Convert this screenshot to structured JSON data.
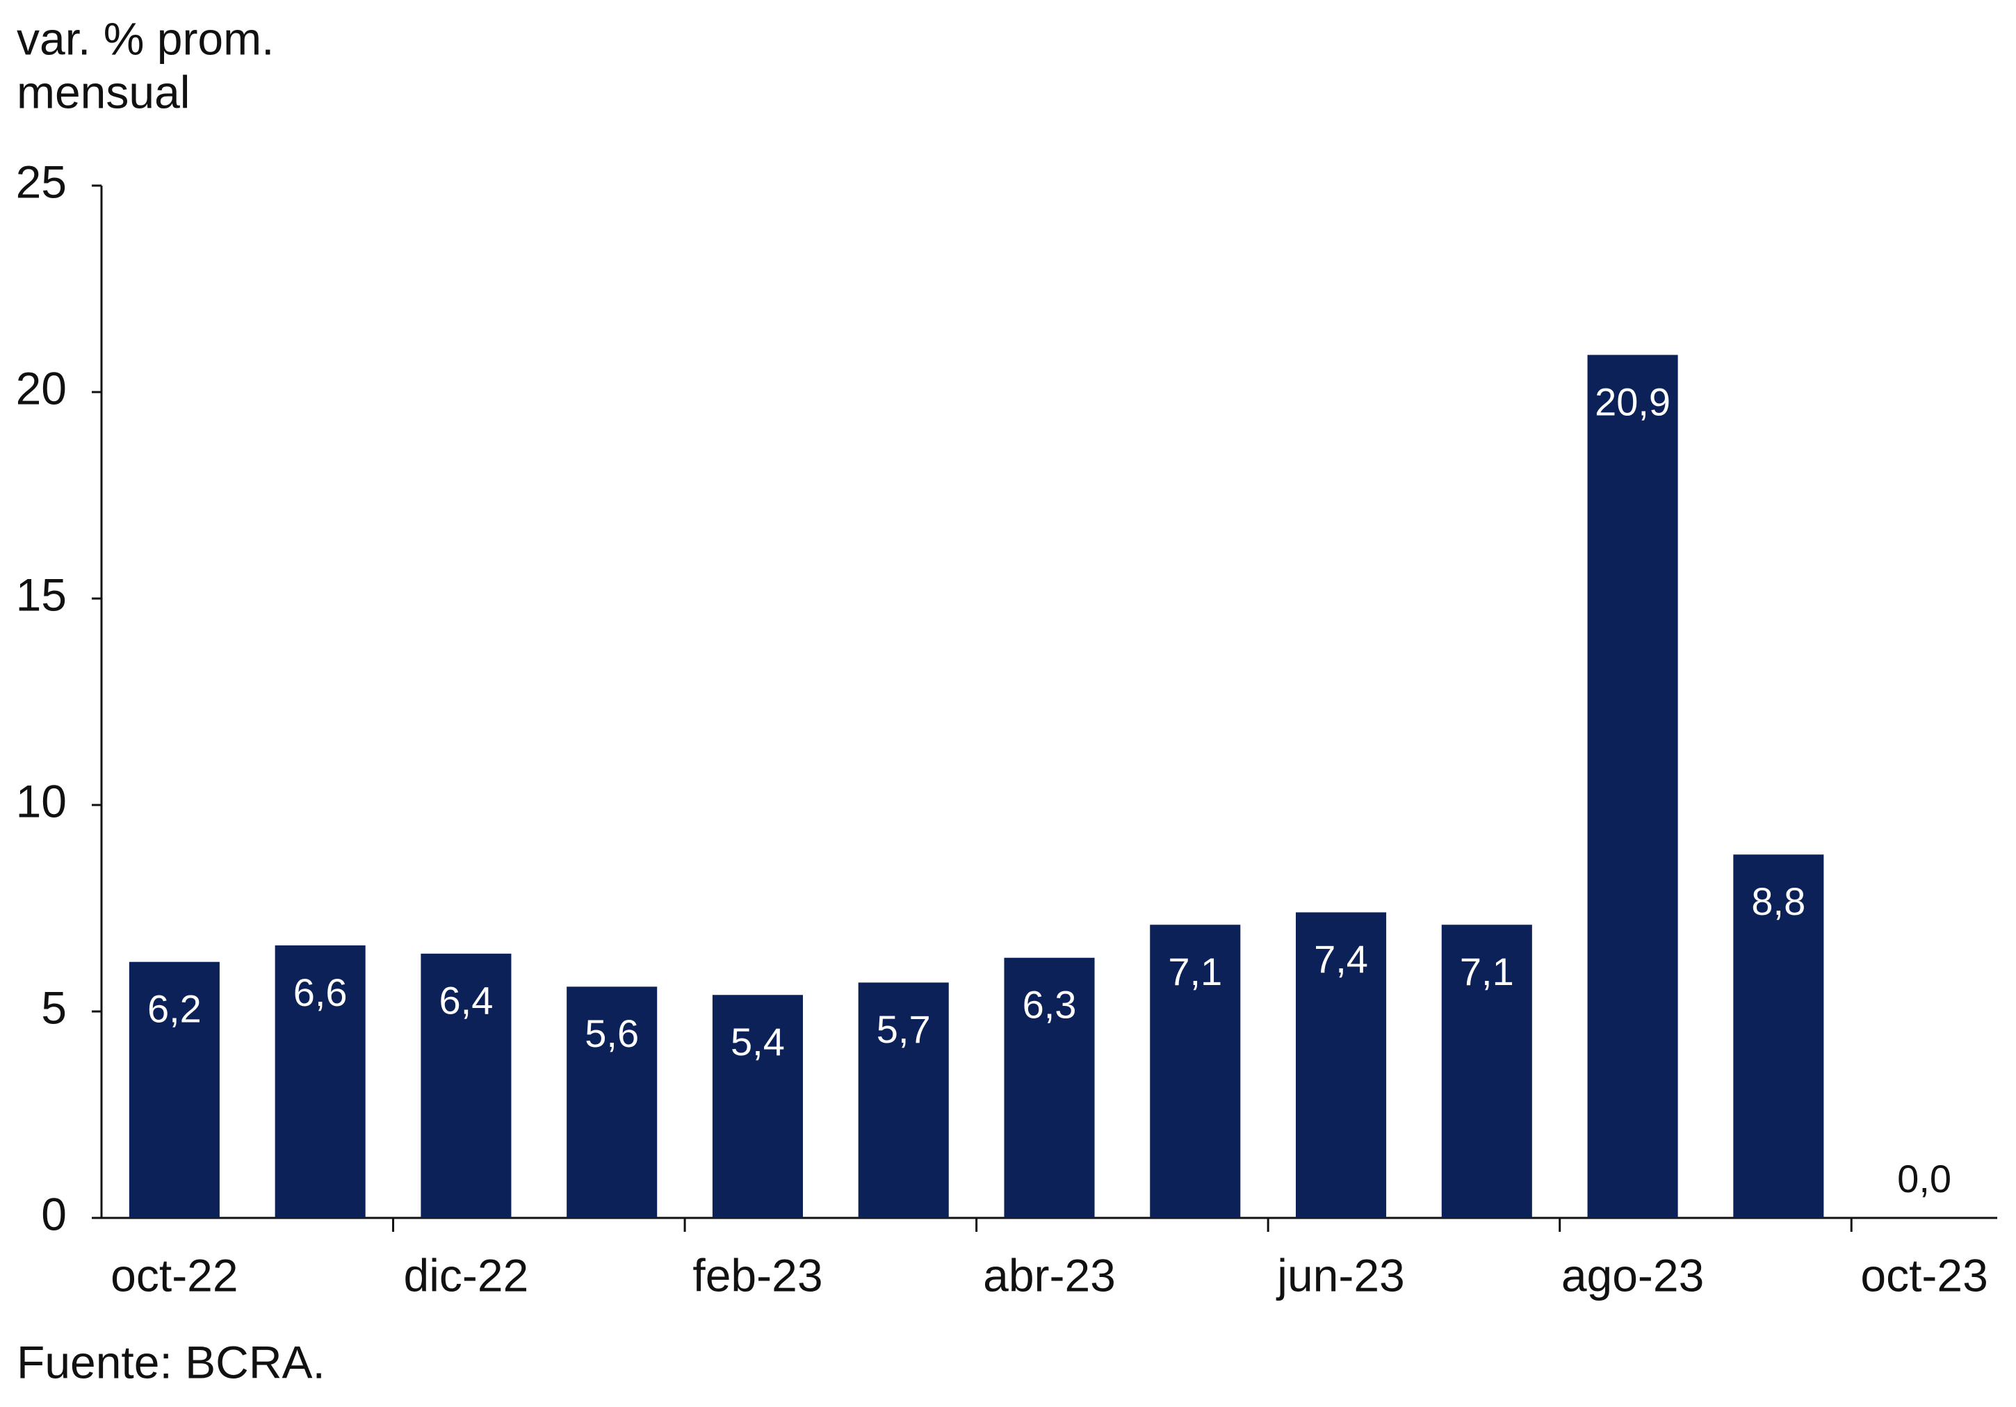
{
  "chart_data": {
    "type": "bar",
    "y_label": [
      "var. % prom.",
      "mensual"
    ],
    "source": "Fuente: BCRA.",
    "categories": [
      "oct-22",
      null,
      "dic-22",
      null,
      "feb-23",
      null,
      "abr-23",
      null,
      "jun-23",
      null,
      "ago-23",
      null,
      "oct-23"
    ],
    "values": [
      6.2,
      6.6,
      6.4,
      5.6,
      5.4,
      5.7,
      6.3,
      7.1,
      7.4,
      7.1,
      20.9,
      8.8,
      0
    ],
    "value_labels": [
      "6,2",
      "6,6",
      "6,4",
      "5,6",
      "5,4",
      "5,7",
      "6,3",
      "7,1",
      "7,4",
      "7,1",
      "20,9",
      "8,8",
      "0,0"
    ],
    "color": "#0c2157",
    "ylim": [
      0,
      25
    ],
    "yticks": [
      0,
      5,
      10,
      15,
      20,
      25
    ],
    "grid": false
  }
}
